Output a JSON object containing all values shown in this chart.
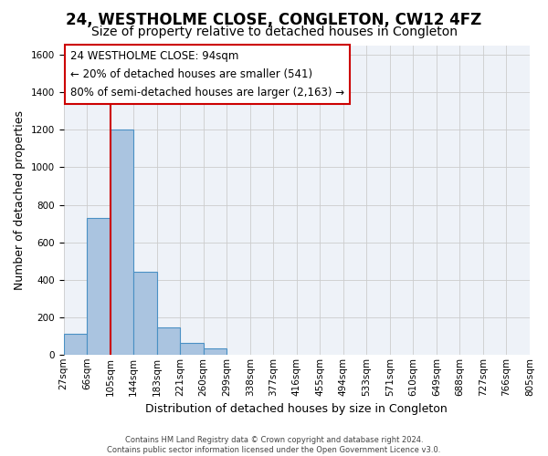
{
  "title": "24, WESTHOLME CLOSE, CONGLETON, CW12 4FZ",
  "subtitle": "Size of property relative to detached houses in Congleton",
  "bar_heights": [
    110,
    730,
    1200,
    440,
    145,
    60,
    35,
    0,
    0,
    0,
    0,
    0,
    0,
    0,
    0,
    0,
    0,
    0,
    0,
    0
  ],
  "bin_labels": [
    "27sqm",
    "66sqm",
    "105sqm",
    "144sqm",
    "183sqm",
    "221sqm",
    "260sqm",
    "299sqm",
    "338sqm",
    "377sqm",
    "416sqm",
    "455sqm",
    "494sqm",
    "533sqm",
    "571sqm",
    "610sqm",
    "649sqm",
    "688sqm",
    "727sqm",
    "766sqm",
    "805sqm"
  ],
  "bar_color": "#aac4e0",
  "bar_edge_color": "#4a90c4",
  "ylim": [
    0,
    1650
  ],
  "yticks": [
    0,
    200,
    400,
    600,
    800,
    1000,
    1200,
    1400,
    1600
  ],
  "ylabel": "Number of detached properties",
  "xlabel": "Distribution of detached houses by size in Congleton",
  "vline_x": 2.0,
  "vline_color": "#cc0000",
  "annotation_box_text": "24 WESTHOLME CLOSE: 94sqm\n← 20% of detached houses are smaller (541)\n80% of semi-detached houses are larger (2,163) →",
  "footer_text": "Contains HM Land Registry data © Crown copyright and database right 2024.\nContains public sector information licensed under the Open Government Licence v3.0.",
  "grid_color": "#cccccc",
  "background_color": "#eef2f8",
  "title_fontsize": 12,
  "subtitle_fontsize": 10,
  "annotation_fontsize": 8.5,
  "axis_label_fontsize": 9,
  "tick_label_fontsize": 7.5
}
